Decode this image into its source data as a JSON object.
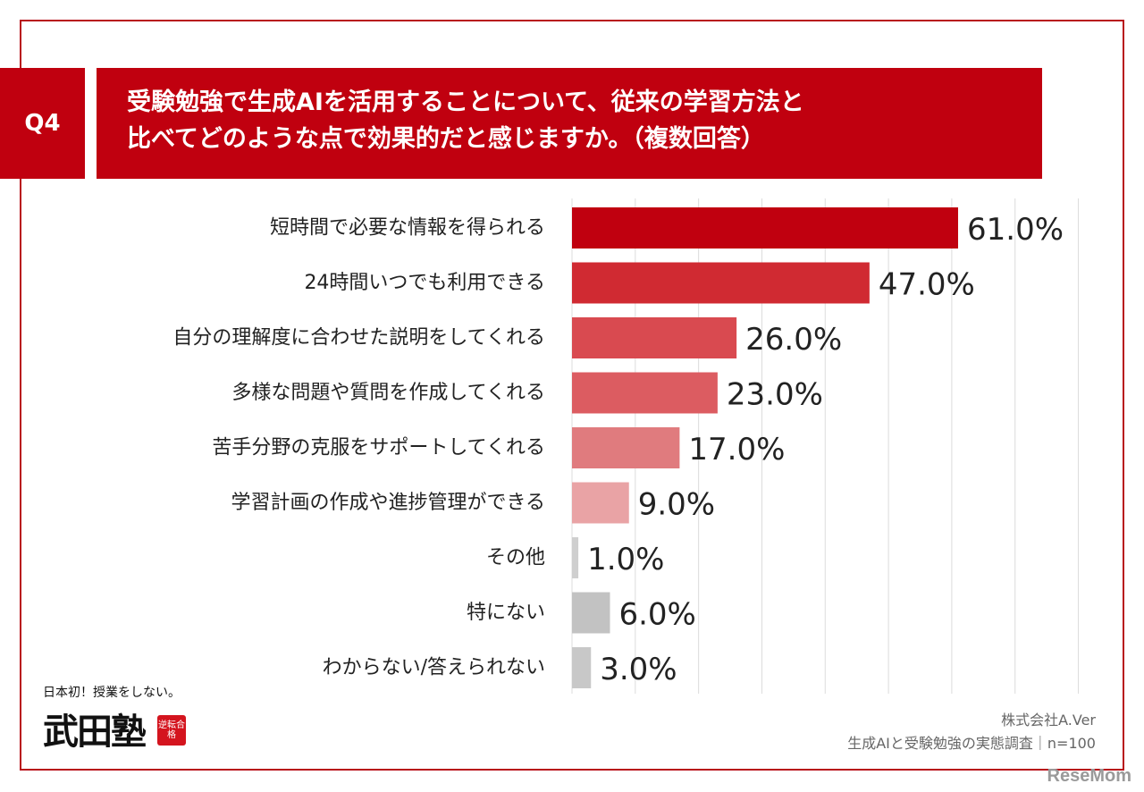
{
  "header": {
    "badge": "Q4",
    "title_line1": "受験勉強で生成AIを活用することについて、従来の学習方法と",
    "title_line2": "比べてどのような点で効果的だと感じますか。（複数回答）"
  },
  "chart_data": {
    "type": "bar",
    "orientation": "horizontal",
    "categories": [
      "短時間で必要な情報を得られる",
      "24時間いつでも利用できる",
      "自分の理解度に合わせた説明をしてくれる",
      "多様な問題や質問を作成してくれる",
      "苦手分野の克服をサポートしてくれる",
      "学習計画の作成や進捗管理ができる",
      "その他",
      "特にない",
      "わからない/答えられない"
    ],
    "values": [
      61.0,
      47.0,
      26.0,
      23.0,
      17.0,
      9.0,
      1.0,
      6.0,
      3.0
    ],
    "data_labels": [
      "61.0%",
      "47.0%",
      "26.0%",
      "23.0%",
      "17.0%",
      "9.0%",
      "1.0%",
      "6.0%",
      "3.0%"
    ],
    "bar_colors": [
      "#c0000f",
      "#d02a32",
      "#d94a50",
      "#dc5c61",
      "#e07b7e",
      "#e9a3a5",
      "#cfcfcf",
      "#c2c2c2",
      "#c8c8c8"
    ],
    "xlim": [
      0,
      85
    ],
    "grid": true
  },
  "logo": {
    "tagline": "日本初！授業をしない。",
    "name": "武田塾",
    "seal": "逆転合格"
  },
  "source": {
    "company": "株式会社A.Ver",
    "survey": "生成AIと受験勉強の実態調査｜n=100"
  },
  "watermark": "ReseMom"
}
